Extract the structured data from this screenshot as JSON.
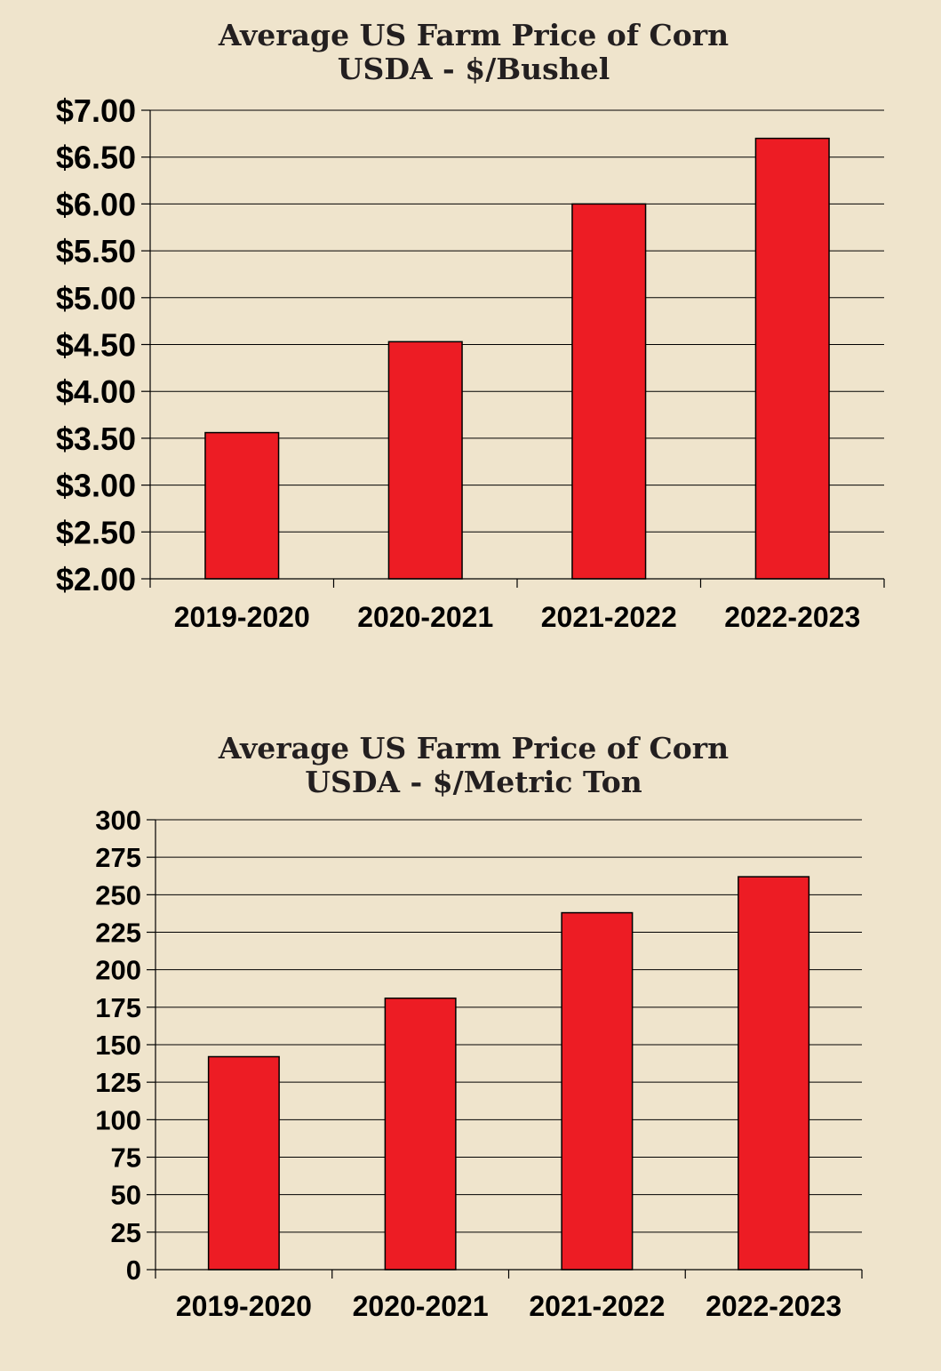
{
  "charts": [
    {
      "title_line1": "Average US Farm Price of Corn",
      "title_line2": "USDA - $/Bushel"
    },
    {
      "title_line1": "Average US Farm Price of Corn",
      "title_line2": "USDA - $/Metric Ton"
    }
  ],
  "chart_data": [
    {
      "type": "bar",
      "title": "Average US Farm Price of Corn USDA - $/Bushel",
      "categories": [
        "2019-2020",
        "2020-2021",
        "2021-2022",
        "2022-2023"
      ],
      "values": [
        3.56,
        4.53,
        6.0,
        6.7
      ],
      "ylim": [
        2.0,
        7.0
      ],
      "ytick_values": [
        2.0,
        2.5,
        3.0,
        3.5,
        4.0,
        4.5,
        5.0,
        5.5,
        6.0,
        6.5,
        7.0
      ],
      "ytick_labels": [
        "$2.00",
        "$2.50",
        "$3.00",
        "$3.50",
        "$4.00",
        "$4.50",
        "$5.00",
        "$5.50",
        "$6.00",
        "$6.50",
        "$7.00"
      ],
      "grid": true,
      "bar_color": "#ed1c24"
    },
    {
      "type": "bar",
      "title": "Average US Farm Price of Corn USDA - $/Metric Ton",
      "categories": [
        "2019-2020",
        "2020-2021",
        "2021-2022",
        "2022-2023"
      ],
      "values": [
        142,
        181,
        238,
        262
      ],
      "ylim": [
        0,
        300
      ],
      "ytick_values": [
        0,
        25,
        50,
        75,
        100,
        125,
        150,
        175,
        200,
        225,
        250,
        275,
        300
      ],
      "ytick_labels": [
        "0",
        "25",
        "50",
        "75",
        "100",
        "125",
        "150",
        "175",
        "200",
        "225",
        "250",
        "275",
        "300"
      ],
      "grid": true,
      "bar_color": "#ed1c24"
    }
  ]
}
